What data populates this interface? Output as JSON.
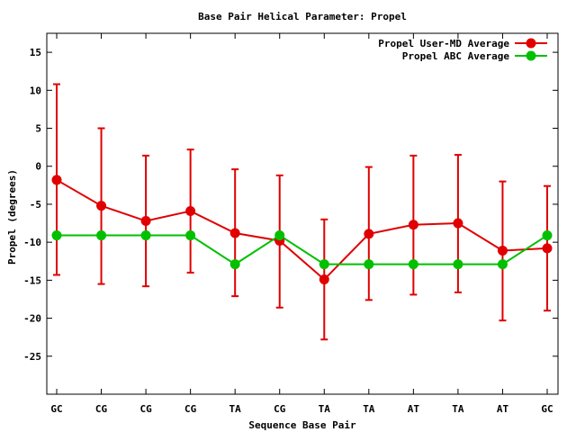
{
  "chart_data": {
    "type": "line",
    "title": "Base Pair Helical Parameter: Propel",
    "xlabel": "Sequence Base Pair",
    "ylabel": "Propel (degrees)",
    "categories": [
      "GC",
      "CG",
      "CG",
      "CG",
      "TA",
      "CG",
      "TA",
      "TA",
      "AT",
      "TA",
      "AT",
      "GC"
    ],
    "ylim": [
      -30,
      17.5
    ],
    "yticks": [
      15,
      10,
      5,
      0,
      -5,
      -10,
      -15,
      -20,
      -25
    ],
    "grid": false,
    "legend_position": "top-right",
    "series": [
      {
        "name": "Propel User-MD Average",
        "color": "#e00000",
        "values": [
          -1.8,
          -5.2,
          -7.2,
          -5.9,
          -8.8,
          -9.8,
          -14.9,
          -8.9,
          -7.7,
          -7.5,
          -11.1,
          -10.8
        ],
        "error_low": [
          -14.3,
          -15.5,
          -15.8,
          -14.0,
          -17.1,
          -18.6,
          -22.8,
          -17.6,
          -16.9,
          -16.6,
          -20.3,
          -19.0
        ],
        "error_high": [
          10.8,
          5.0,
          1.4,
          2.2,
          -0.4,
          -1.2,
          -7.0,
          -0.1,
          1.4,
          1.5,
          -2.0,
          -2.6
        ]
      },
      {
        "name": "Propel ABC Average",
        "color": "#00c000",
        "values": [
          -9.1,
          -9.1,
          -9.1,
          -9.1,
          -12.9,
          -9.1,
          -12.9,
          -12.9,
          -12.9,
          -12.9,
          -12.9,
          -9.1
        ]
      }
    ]
  }
}
